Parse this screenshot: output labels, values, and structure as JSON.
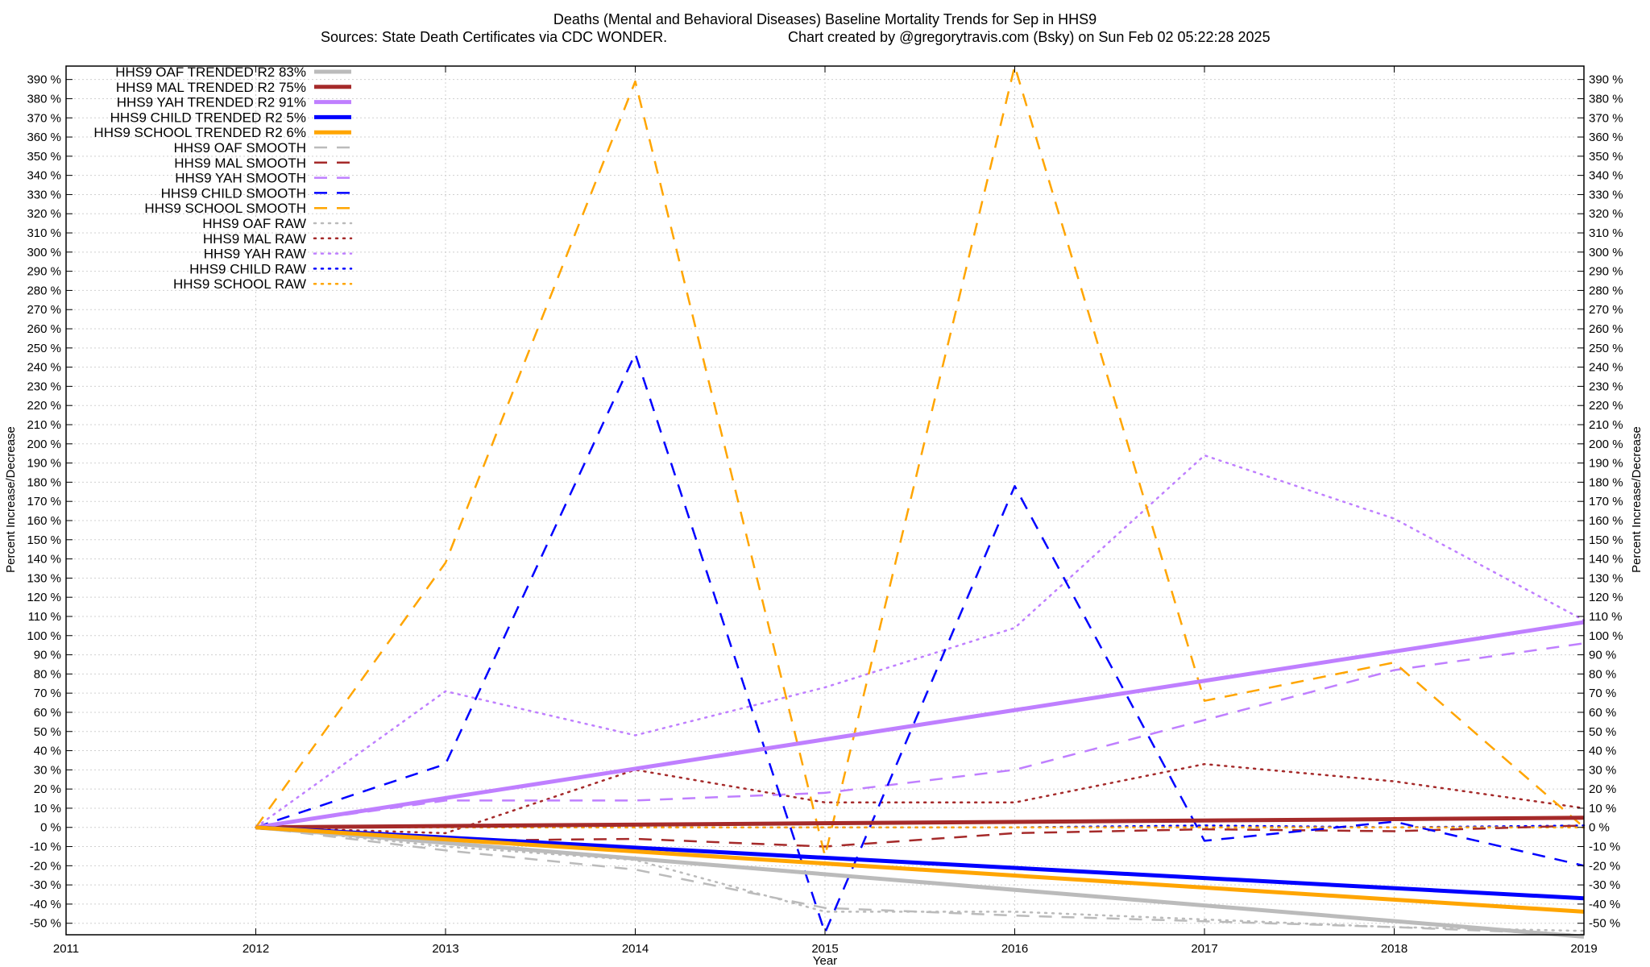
{
  "chart_data": {
    "type": "line",
    "title": "Deaths (Mental and Behavioral Diseases)  Baseline Mortality Trends for Sep in HHS9",
    "subtitle_left": "Sources: State Death Certificates via CDC WONDER.",
    "subtitle_right": "Chart created by @gregorytravis.com (Bsky) on Sun Feb 02 05:22:28 2025",
    "xlabel": "Year",
    "ylabel": "Percent Increase/Decrease",
    "ylabel_right": "Percent Increase/Decrease",
    "xlim": [
      2011,
      2019
    ],
    "ylim": [
      -56,
      397
    ],
    "x_ticks": [
      "2011",
      "2012",
      "2013",
      "2014",
      "2015",
      "2016",
      "2017",
      "2018",
      "2019"
    ],
    "y_ticks_left": [
      "-50 %",
      "-40 %",
      "-30 %",
      "-20 %",
      "-10 %",
      "0 %",
      "10 %",
      "20 %",
      "30 %",
      "40 %",
      "50 %",
      "60 %",
      "70 %",
      "80 %",
      "90 %",
      "100 %",
      "110 %",
      "120 %",
      "130 %",
      "140 %",
      "150 %",
      "160 %",
      "170 %",
      "180 %",
      "190 %",
      "200 %",
      "210 %",
      "220 %",
      "230 %",
      "240 %",
      "250 %",
      "260 %",
      "270 %",
      "280 %",
      "290 %",
      "300 %",
      "310 %",
      "320 %",
      "330 %",
      "340 %",
      "350 %",
      "360 %",
      "370 %",
      "380 %",
      "390 %"
    ],
    "y_ticks_right": [
      "-50 %",
      "-40 %",
      "-30 %",
      "-20 %",
      "-10 %",
      "0 %",
      "10 %",
      "20 %",
      "30 %",
      "40 %",
      "50 %",
      "60 %",
      "70 %",
      "80 %",
      "90 %",
      "100 %",
      "110 %",
      "120 %",
      "130 %",
      "140 %",
      "150 %",
      "160 %",
      "170 %",
      "180 %",
      "190 %",
      "200 %",
      "210 %",
      "220 %",
      "230 %",
      "240 %",
      "250 %",
      "260 %",
      "270 %",
      "280 %",
      "290 %",
      "300 %",
      "310 %",
      "320 %",
      "330 %",
      "340 %",
      "350 %",
      "360 %",
      "370 %",
      "380 %",
      "390 %"
    ],
    "grid": true,
    "legend_position": "top-left",
    "series": [
      {
        "name": "HHS9 OAF TRENDED R2  83%",
        "style": "solid",
        "color": "#bbbbbb",
        "x": [
          2012,
          2019
        ],
        "y": [
          0,
          -57
        ]
      },
      {
        "name": "HHS9 MAL TRENDED R2  75%",
        "style": "solid",
        "color": "#a52a2a",
        "x": [
          2012,
          2019
        ],
        "y": [
          0,
          5
        ]
      },
      {
        "name": "HHS9 YAH TRENDED R2  91%",
        "style": "solid",
        "color": "#bf7fff",
        "x": [
          2012,
          2019
        ],
        "y": [
          0,
          107
        ]
      },
      {
        "name": "HHS9 CHILD TRENDED R2   5%",
        "style": "solid",
        "color": "#0000ff",
        "x": [
          2012,
          2019
        ],
        "y": [
          0,
          -37
        ]
      },
      {
        "name": "HHS9 SCHOOL TRENDED R2   6%",
        "style": "solid",
        "color": "#ffa500",
        "x": [
          2012,
          2019
        ],
        "y": [
          0,
          -44
        ]
      },
      {
        "name": "HHS9 OAF SMOOTH",
        "style": "dashed",
        "color": "#bbbbbb",
        "x": [
          2012,
          2013,
          2014,
          2015,
          2016,
          2017,
          2018,
          2019
        ],
        "y": [
          0,
          -12,
          -22,
          -42,
          -46,
          -49,
          -52,
          -56
        ]
      },
      {
        "name": "HHS9 MAL SMOOTH",
        "style": "dashed",
        "color": "#a52a2a",
        "x": [
          2012,
          2013,
          2014,
          2015,
          2016,
          2017,
          2018,
          2019
        ],
        "y": [
          0,
          -7,
          -6,
          -10,
          -3,
          -1,
          -2,
          1
        ]
      },
      {
        "name": "HHS9 YAH SMOOTH",
        "style": "dashed",
        "color": "#bf7fff",
        "x": [
          2012,
          2013,
          2014,
          2015,
          2016,
          2017,
          2018,
          2019
        ],
        "y": [
          0,
          14,
          14,
          18,
          30,
          56,
          82,
          96
        ]
      },
      {
        "name": "HHS9 CHILD SMOOTH",
        "style": "dashed",
        "color": "#0000ff",
        "x": [
          2012,
          2013,
          2014,
          2015,
          2016,
          2017,
          2018,
          2019
        ],
        "y": [
          0,
          33,
          247,
          -55,
          178,
          -7,
          3,
          -20
        ]
      },
      {
        "name": "HHS9 SCHOOL SMOOTH",
        "style": "dashed",
        "color": "#ffa500",
        "x": [
          2012,
          2013,
          2014,
          2015,
          2016,
          2017,
          2018,
          2019
        ],
        "y": [
          0,
          138,
          389,
          -15,
          397,
          66,
          86,
          0
        ]
      },
      {
        "name": "HHS9 OAF RAW",
        "style": "dotted",
        "color": "#bbbbbb",
        "x": [
          2012,
          2013,
          2014,
          2015,
          2016,
          2017,
          2018,
          2019
        ],
        "y": [
          0,
          -10,
          -17,
          -44,
          -44,
          -48,
          -52,
          -54
        ]
      },
      {
        "name": "HHS9 MAL RAW",
        "style": "dotted",
        "color": "#a52a2a",
        "x": [
          2012,
          2013,
          2014,
          2015,
          2016,
          2017,
          2018,
          2019
        ],
        "y": [
          0,
          -3,
          30,
          13,
          13,
          33,
          24,
          10
        ]
      },
      {
        "name": "HHS9 YAH RAW",
        "style": "dotted",
        "color": "#bf7fff",
        "x": [
          2012,
          2013,
          2014,
          2015,
          2016,
          2017,
          2018,
          2019
        ],
        "y": [
          0,
          71,
          48,
          73,
          104,
          194,
          161,
          108
        ]
      },
      {
        "name": "HHS9 CHILD RAW",
        "style": "dotted",
        "color": "#0000ff",
        "x": [
          2012,
          2013,
          2014,
          2015,
          2016,
          2017,
          2018,
          2019
        ],
        "y": [
          0,
          0,
          0,
          0,
          0,
          1,
          0,
          1
        ]
      },
      {
        "name": "HHS9 SCHOOL RAW",
        "style": "dotted",
        "color": "#ffa500",
        "x": [
          2012,
          2013,
          2014,
          2015,
          2016,
          2017,
          2018,
          2019
        ],
        "y": [
          0,
          0,
          0,
          0,
          0,
          0,
          0,
          0
        ]
      }
    ]
  }
}
